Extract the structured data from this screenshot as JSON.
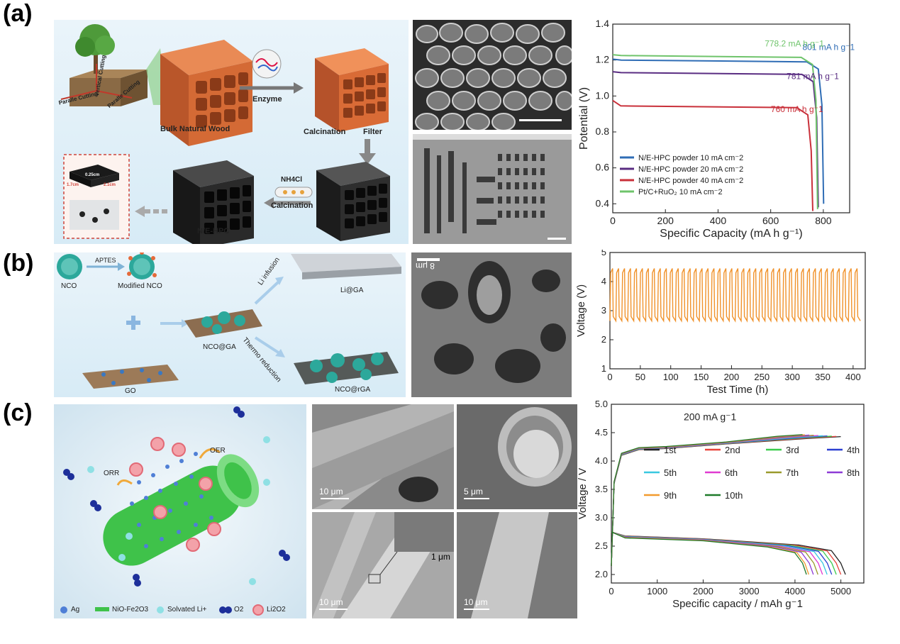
{
  "labels": {
    "a": "(a)",
    "b": "(b)",
    "c": "(c)"
  },
  "schematic_a": {
    "parallel_cutting_1": "Paralle Cutting",
    "parallel_cutting_2": "Paralle Cutting",
    "vertical_cutting": "Vertical Cutting",
    "bulk_wood": "Bulk Natural Wood",
    "enzyme": "Enzyme",
    "calcination_1": "Calcination",
    "filter": "Filter",
    "nh4cl": "NH4Cl",
    "calcination_2": "Calcination",
    "product": "N/E-HPC",
    "dim_1": "0.25cm",
    "dim_2": "1.7cm",
    "dim_3": "2.1cm"
  },
  "schematic_b": {
    "aptes": "APTES",
    "nco": "NCO",
    "modified_nco": "Modified NCO",
    "li_infusion": "Li infusion",
    "li_ga": "Li@GA",
    "nco_ga": "NCO@GA",
    "thermo_reduction": "Thermo reduction",
    "nco_rga": "NCO@rGA",
    "go": "GO",
    "sem_scale": "8 μm"
  },
  "schematic_c": {
    "oer": "OER",
    "orr": "ORR",
    "legend": [
      "Ag",
      "NiO-Fe2O3",
      "Solvated Li+",
      "O2",
      "Li2O2"
    ],
    "sem_scales": [
      "10 μm",
      "5 μm",
      "1 μm",
      "10 μm",
      "10 μm"
    ]
  },
  "chart_data": [
    {
      "type": "line",
      "xlabel": "Specific Capacity (mA h g-1)",
      "ylabel": "Potential (V)",
      "xlim": [
        0,
        900
      ],
      "ylim": [
        0.35,
        1.4
      ],
      "xticks": [
        0,
        200,
        400,
        600,
        800
      ],
      "yticks": [
        0.4,
        0.6,
        0.8,
        1.0,
        1.2,
        1.4
      ],
      "series": [
        {
          "name": "N/E-HPC powder 10 mA cm-2",
          "color": "#2f6db5",
          "plateau": 1.2,
          "capacity": 801,
          "end_v": 0.4,
          "annotation": "801 mA h g-1"
        },
        {
          "name": "N/E-HPC powder 20 mA cm-2",
          "color": "#5a2d82",
          "plateau": 1.13,
          "capacity": 781,
          "end_v": 0.38,
          "annotation": "781 mA h g-1"
        },
        {
          "name": "N/E-HPC powder 40 mA cm-2",
          "color": "#c9303a",
          "plateau": 0.945,
          "capacity": 760,
          "end_v": 0.36,
          "annotation": "760 mA h g-1"
        },
        {
          "name": "Pt/C+RuO2 10 mA cm-2",
          "color": "#6fc46b",
          "plateau": 1.225,
          "capacity": 778.2,
          "end_v": 0.37,
          "annotation": "778.2 mA h g-1"
        }
      ]
    },
    {
      "type": "line",
      "xlabel": "Test Time (h)",
      "ylabel": "Voltage (V)",
      "xlim": [
        0,
        420
      ],
      "ylim": [
        1,
        5
      ],
      "xticks": [
        0,
        50,
        100,
        150,
        200,
        250,
        300,
        350,
        400
      ],
      "yticks": [
        1,
        2,
        3,
        4,
        5
      ],
      "series": [
        {
          "name": "",
          "color": "#f0922b",
          "charge_v": 4.45,
          "discharge_v": 2.65,
          "cycles": 42,
          "end_h": 412
        }
      ]
    },
    {
      "type": "line",
      "title": "200 mA g-1",
      "xlabel": "Specific capacity / mAh g-1",
      "ylabel": "Voltage / V",
      "xlim": [
        0,
        5500
      ],
      "ylim": [
        1.85,
        5.0
      ],
      "xticks": [
        0,
        1000,
        2000,
        3000,
        4000,
        5000
      ],
      "yticks": [
        2.0,
        2.5,
        3.0,
        3.5,
        4.0,
        4.5,
        5.0
      ],
      "series": [
        {
          "name": "1st",
          "color": "#222222",
          "capacity": 5100
        },
        {
          "name": "2nd",
          "color": "#e8453c",
          "capacity": 5000
        },
        {
          "name": "3rd",
          "color": "#3bcc4d",
          "capacity": 4900
        },
        {
          "name": "4th",
          "color": "#2b3fd1",
          "capacity": 4800
        },
        {
          "name": "5th",
          "color": "#39c8e0",
          "capacity": 4700
        },
        {
          "name": "6th",
          "color": "#e03bd1",
          "capacity": 4600
        },
        {
          "name": "7th",
          "color": "#9a9a2c",
          "capacity": 4500
        },
        {
          "name": "8th",
          "color": "#8e3bd6",
          "capacity": 4400
        },
        {
          "name": "9th",
          "color": "#f29a2e",
          "capacity": 4300
        },
        {
          "name": "10th",
          "color": "#1f7a2a",
          "capacity": 4250
        }
      ]
    }
  ]
}
